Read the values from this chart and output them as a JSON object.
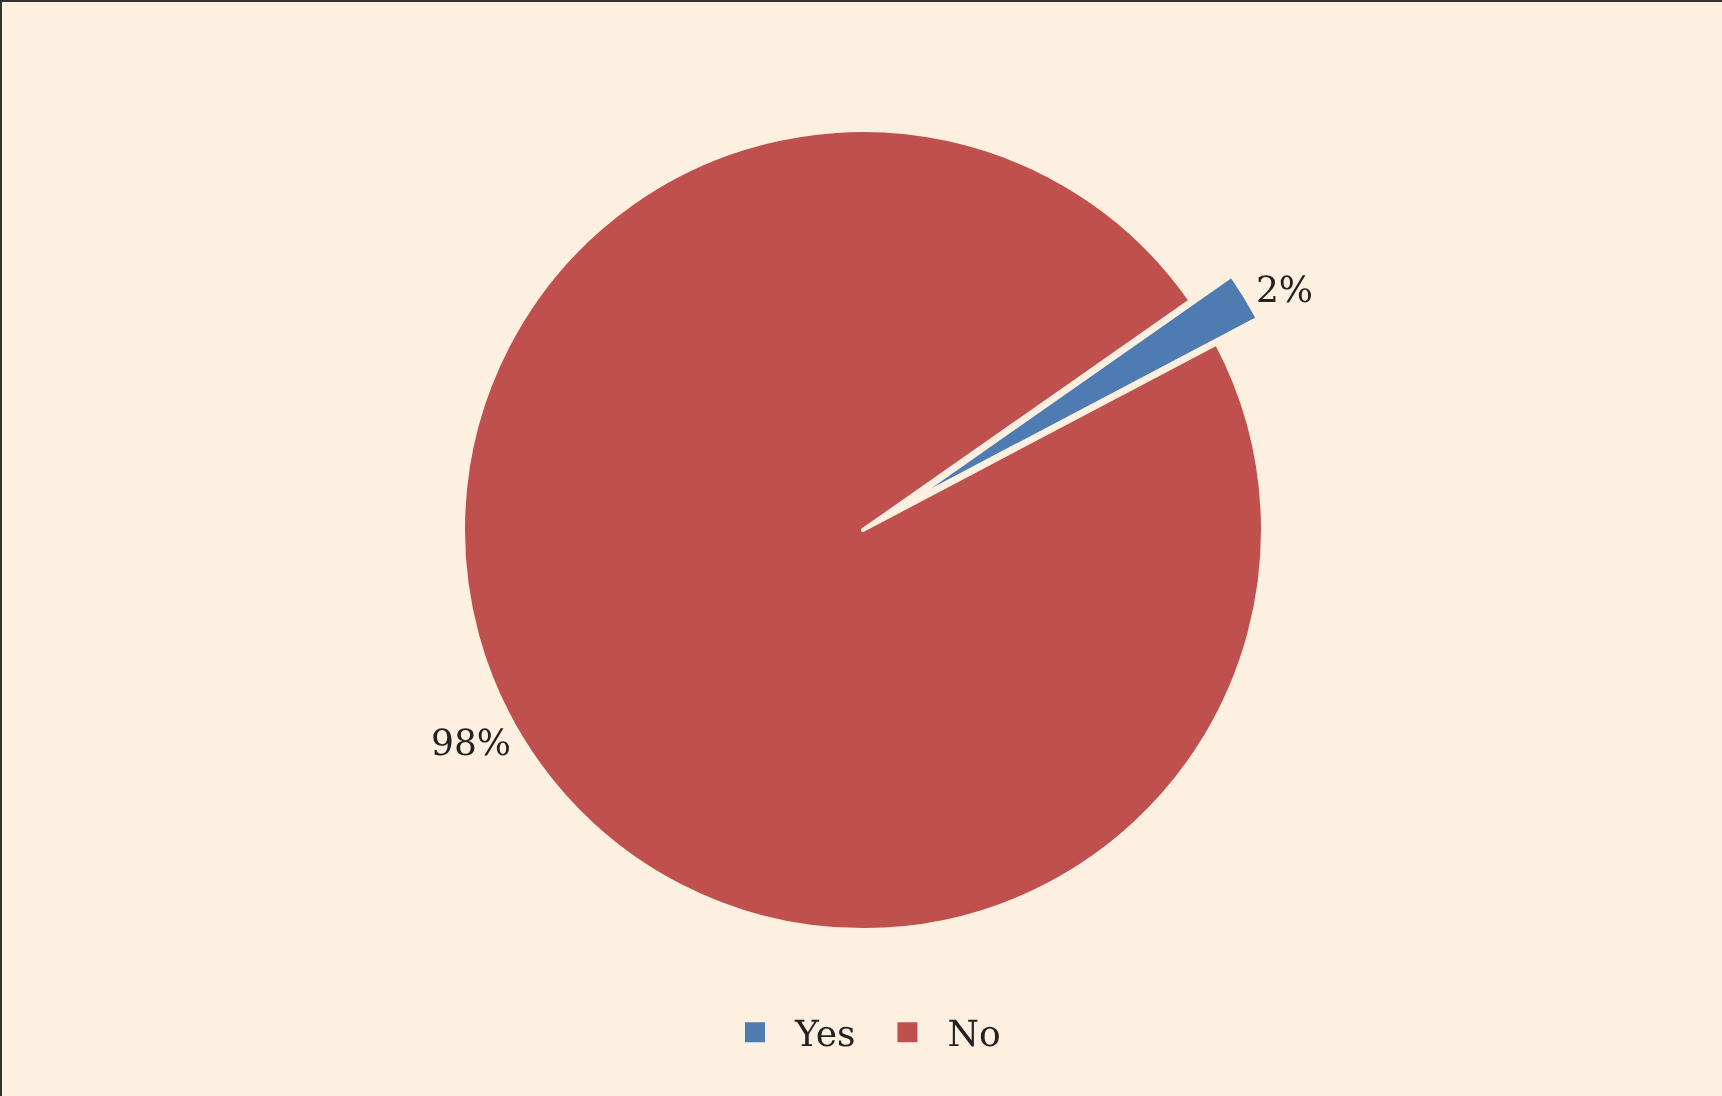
{
  "chart_data": {
    "type": "pie",
    "categories": [
      "Yes",
      "No"
    ],
    "values": [
      2,
      98
    ],
    "colors": [
      "#4f7bb3",
      "#c0504d"
    ],
    "value_labels": [
      "2%",
      "98%"
    ],
    "legend": "bottom"
  }
}
